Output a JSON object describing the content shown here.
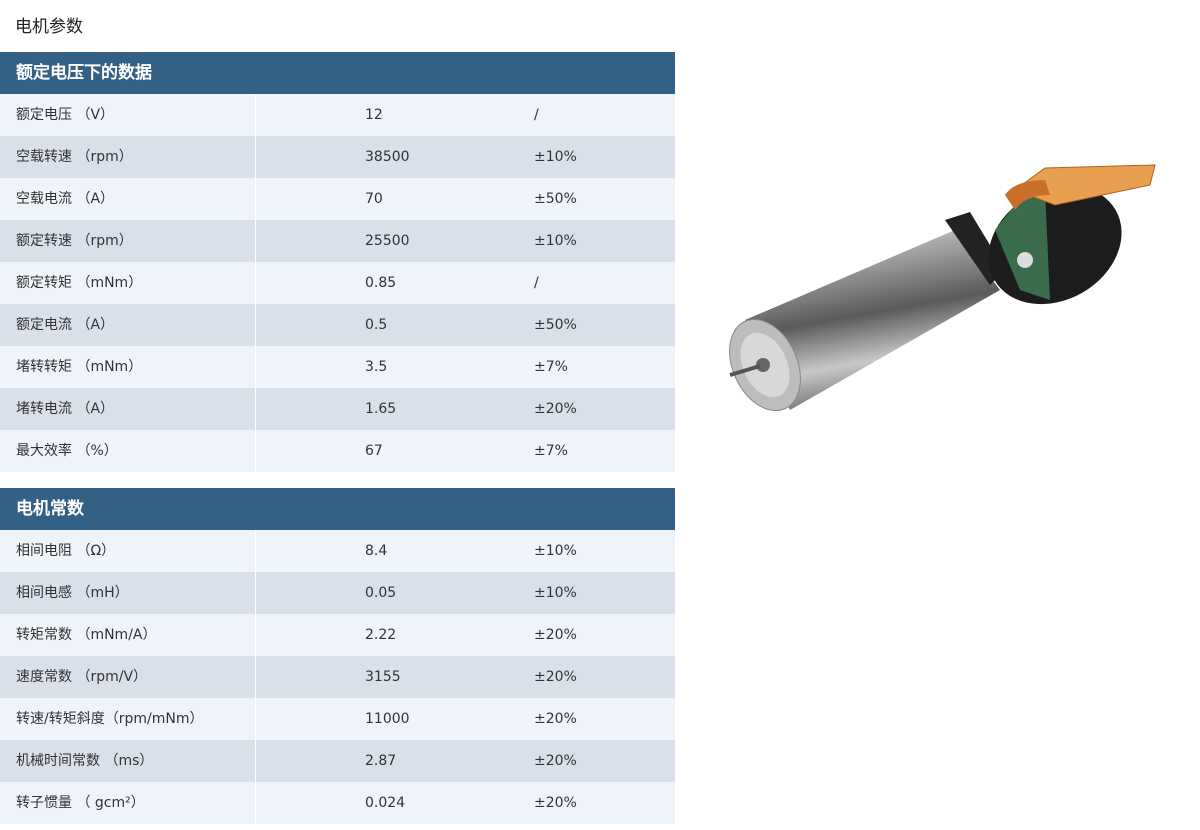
{
  "page_title": "电机参数",
  "sections": [
    {
      "title": "额定电压下的数据",
      "rows": [
        {
          "name": "额定电压 （V）",
          "value": "12",
          "tolerance": "/"
        },
        {
          "name": "空载转速 （rpm）",
          "value": "38500",
          "tolerance": "±10%"
        },
        {
          "name": "空载电流 （A）",
          "value": "70",
          "tolerance": "±50%"
        },
        {
          "name": "额定转速 （rpm）",
          "value": "25500",
          "tolerance": "±10%"
        },
        {
          "name": "额定转矩 （mNm）",
          "value": "0.85",
          "tolerance": "/"
        },
        {
          "name": "额定电流 （A）",
          "value": "0.5",
          "tolerance": "±50%"
        },
        {
          "name": "堵转转矩 （mNm）",
          "value": "3.5",
          "tolerance": "±7%"
        },
        {
          "name": "堵转电流 （A）",
          "value": "1.65",
          "tolerance": "±20%"
        },
        {
          "name": "最大效率 （%）",
          "value": "67",
          "tolerance": "±7%"
        }
      ]
    },
    {
      "title": "电机常数",
      "rows": [
        {
          "name": "相间电阻 （Ω）",
          "value": "8.4",
          "tolerance": "±10%"
        },
        {
          "name": "相间电感 （mH）",
          "value": "0.05",
          "tolerance": "±10%"
        },
        {
          "name": "转矩常数 （mNm/A）",
          "value": "2.22",
          "tolerance": "±20%"
        },
        {
          "name": "速度常数 （rpm/V）",
          "value": "3155",
          "tolerance": "±20%"
        },
        {
          "name": "转速/转矩斜度（rpm/mNm）",
          "value": "11000",
          "tolerance": "±20%"
        },
        {
          "name": "机械时间常数 （ms）",
          "value": "2.87",
          "tolerance": "±20%"
        },
        {
          "name": "转子惯量 （ gcm²）",
          "value": "0.024",
          "tolerance": "±20%"
        }
      ]
    }
  ],
  "colors": {
    "header": "#336185",
    "row_light": "#eff3fa",
    "row_dark": "#dae0ea"
  }
}
